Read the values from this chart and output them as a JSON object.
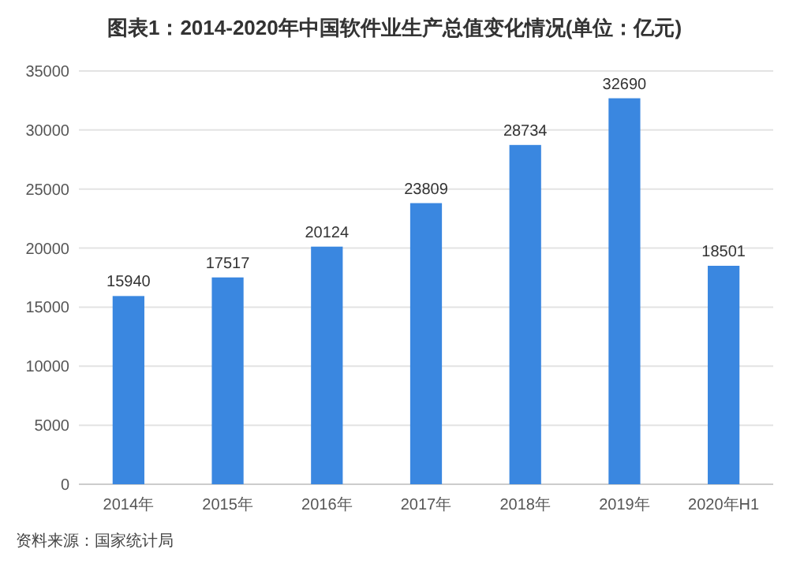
{
  "chart_data": {
    "type": "bar",
    "title": "图表1：2014-2020年中国软件业生产总值变化情况(单位：亿元)",
    "categories": [
      "2014年",
      "2015年",
      "2016年",
      "2017年",
      "2018年",
      "2019年",
      "2020年H1"
    ],
    "values": [
      15940,
      17517,
      20124,
      23809,
      28734,
      32690,
      18501
    ],
    "color": "#3a87e0",
    "ylim": [
      0,
      35000
    ],
    "yticks": [
      0,
      5000,
      10000,
      15000,
      20000,
      25000,
      30000,
      35000
    ],
    "grid": "y",
    "data_labels": true,
    "annotations": [
      "资料来源：国家统计局"
    ]
  }
}
